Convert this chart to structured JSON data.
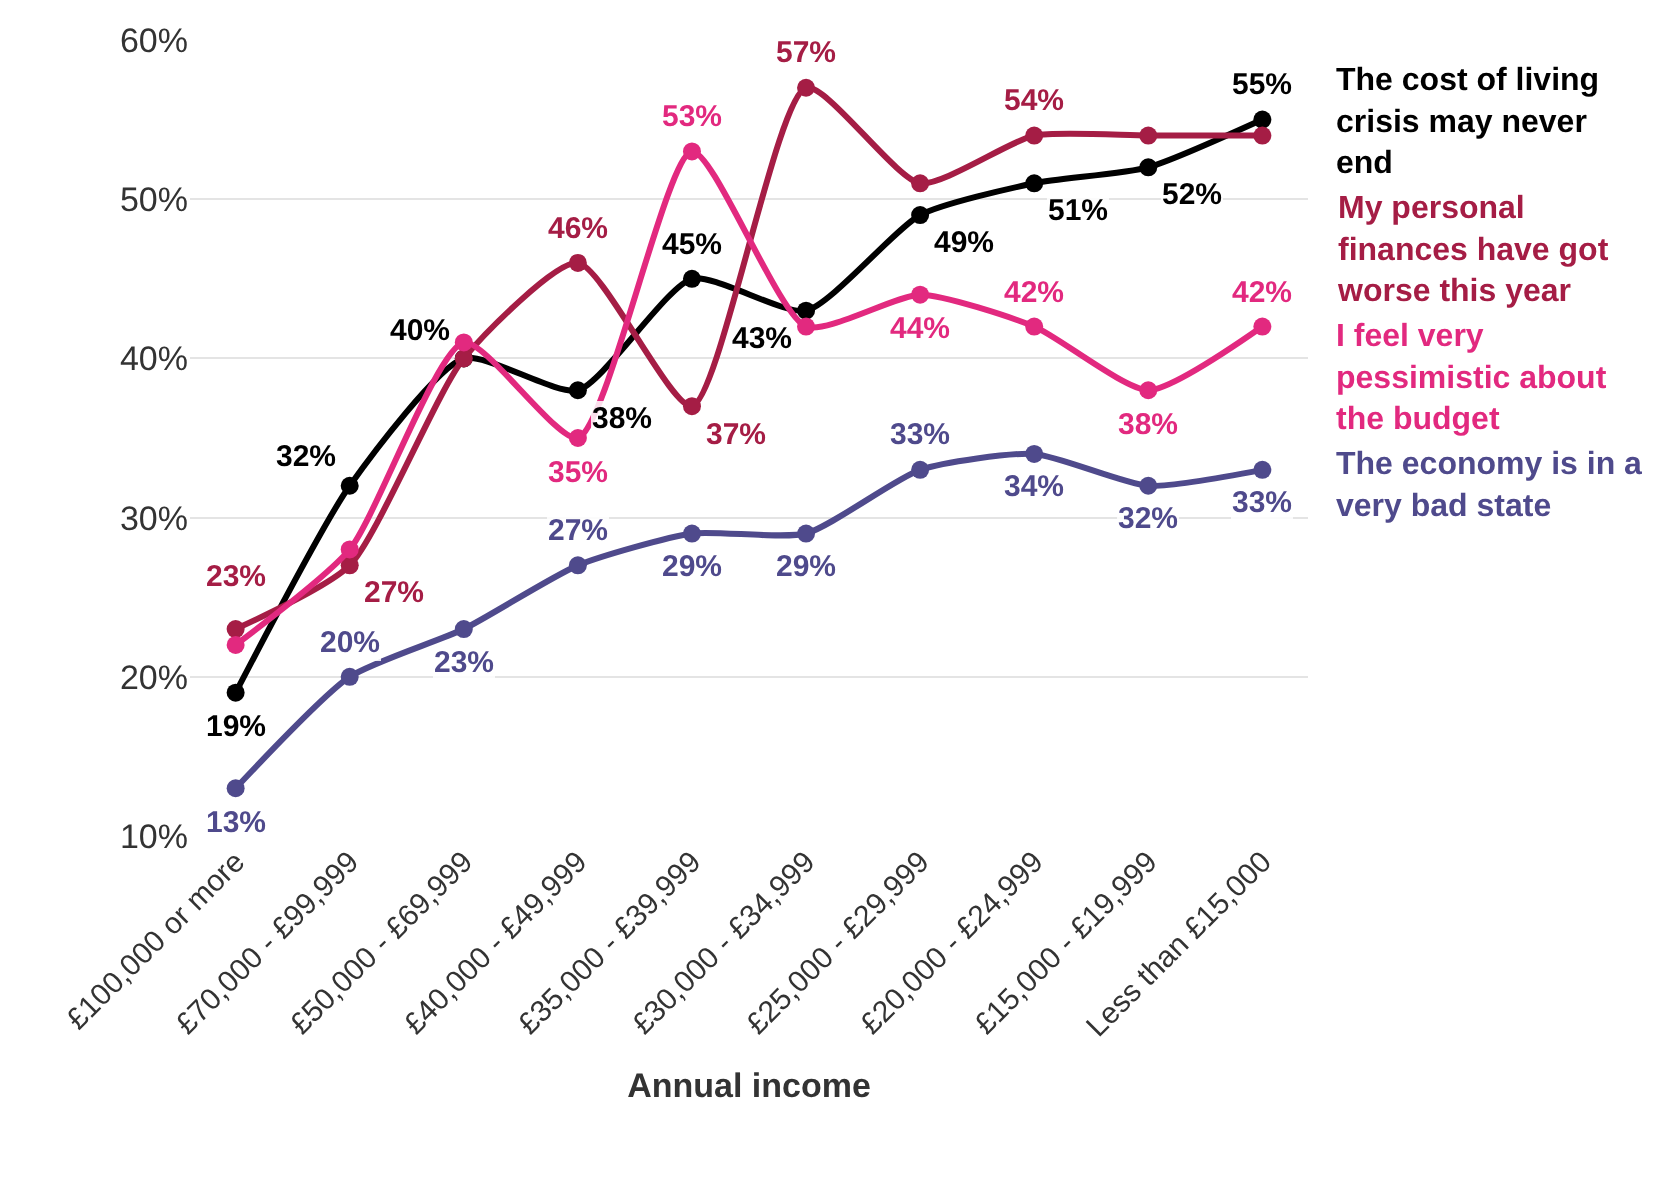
{
  "chart_data": {
    "type": "line",
    "xlabel": "Annual income",
    "categories": [
      "£100,000 or more",
      "£70,000 - £99,999",
      "£50,000 - £69,999",
      "£40,000 - £49,999",
      "£35,000 - £39,999",
      "£30,000 - £34,999",
      "£25,000 - £29,999",
      "£20,000 - £24,999",
      "£15,000 - £19,999",
      "Less than £15,000"
    ],
    "series": [
      {
        "name": "The cost of living crisis may never end",
        "color": "#000000",
        "values": [
          19,
          32,
          40,
          38,
          45,
          43,
          49,
          51,
          52,
          55
        ],
        "value_labels": [
          "19%",
          "32%",
          "40%",
          "38%",
          "45%",
          "43%",
          "49%",
          "51%",
          "52%",
          "55%"
        ]
      },
      {
        "name": "My personal finances have got worse this year",
        "color": "#a51d45",
        "values": [
          23,
          27,
          40,
          46,
          37,
          57,
          51,
          54,
          54,
          54
        ],
        "value_labels": [
          "23%",
          "27%",
          null,
          "46%",
          "37%",
          "57%",
          null,
          "54%",
          null,
          null
        ]
      },
      {
        "name": "I feel very pessimistic about the budget",
        "color": "#e2297f",
        "values": [
          22,
          28,
          41,
          35,
          53,
          42,
          44,
          42,
          38,
          42
        ],
        "value_labels": [
          null,
          null,
          null,
          "35%",
          "53%",
          null,
          "44%",
          "42%",
          "38%",
          "42%"
        ]
      },
      {
        "name": "The economy is in a very bad state",
        "color": "#4f4a8c",
        "values": [
          13,
          20,
          23,
          27,
          29,
          29,
          33,
          34,
          32,
          33
        ],
        "value_labels": [
          "13%",
          "20%",
          "23%",
          "27%",
          "29%",
          "29%",
          "33%",
          "34%",
          "32%",
          "33%"
        ]
      }
    ],
    "ylim": [
      10,
      60
    ],
    "yticks": [
      {
        "value": 10,
        "label": "10%"
      },
      {
        "value": 20,
        "label": "20%"
      },
      {
        "value": 30,
        "label": "30%"
      },
      {
        "value": 40,
        "label": "40%"
      },
      {
        "value": 50,
        "label": "50%"
      },
      {
        "value": 60,
        "label": "60%"
      }
    ],
    "grid": "y",
    "legend": false,
    "marker": "circle",
    "line_style": "solid"
  }
}
